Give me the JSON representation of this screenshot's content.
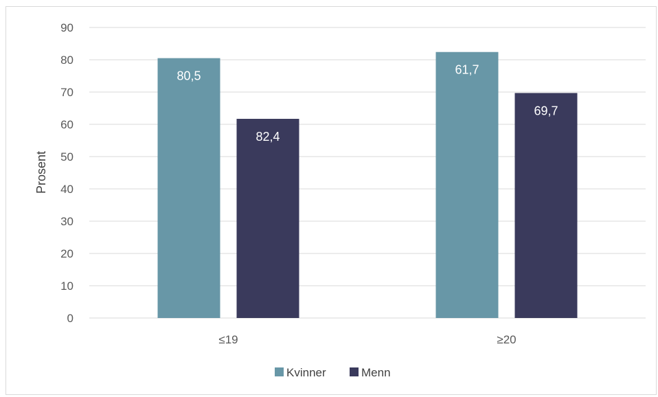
{
  "chart_data": {
    "type": "bar",
    "categories": [
      "≤19",
      "≥20"
    ],
    "series": [
      {
        "name": "Kvinner",
        "color": "#6897a7",
        "values": [
          80.5,
          82.4
        ]
      },
      {
        "name": "Menn",
        "color": "#3a3a5c",
        "values": [
          61.7,
          69.7
        ]
      }
    ],
    "value_labels": [
      [
        "80,5",
        "82,4"
      ],
      [
        "61,7",
        "69,7"
      ]
    ],
    "ylabel": "Prosent",
    "ylim": [
      0,
      90
    ],
    "yticks": [
      0,
      10,
      20,
      30,
      40,
      50,
      60,
      70,
      80,
      90
    ],
    "grid": true,
    "legend_position": "bottom",
    "gridline_color": "#d9d9d9"
  }
}
